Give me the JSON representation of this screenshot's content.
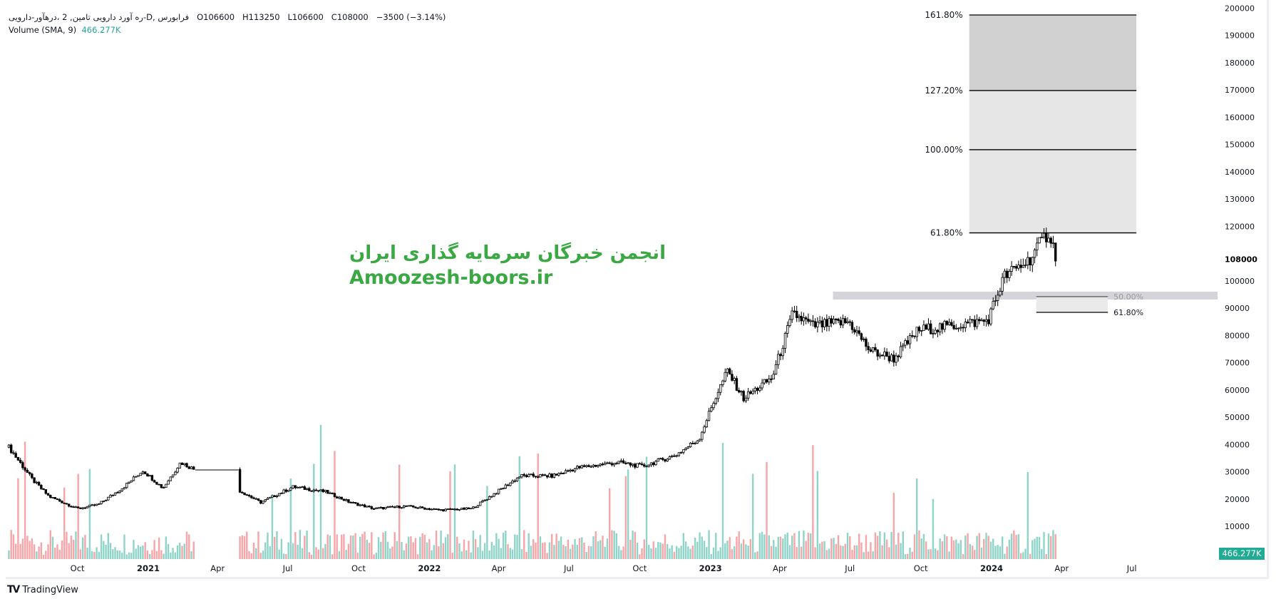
{
  "legend": {
    "symbol": "ره آورد دارویی تامین, 2 ،درهآور-دارویی-D, فرابورس",
    "open": "O106600",
    "high": "H113250",
    "low": "L106600",
    "close": "C108000",
    "change": "−3500 (−3.14%)",
    "volume_label": "Volume (SMA, 9)",
    "volume_value": "466.277K"
  },
  "watermark": {
    "persian": "انجمن خبرگان سرمایه گذاری ایران",
    "site": "Amoozesh-boors.ir",
    "color": "#3aa843"
  },
  "volume_badge": "466.277K",
  "branding": "TradingView",
  "chart_data": {
    "type": "candlestick",
    "price_axis": {
      "ticks": [
        10000,
        20000,
        30000,
        40000,
        50000,
        60000,
        70000,
        80000,
        90000,
        100000,
        120000,
        130000,
        140000,
        150000,
        160000,
        170000,
        180000,
        190000,
        200000
      ],
      "current_price": 108000,
      "current_price_label": "108000",
      "range": [
        0,
        200000
      ]
    },
    "time_axis": [
      {
        "label": "Oct",
        "date": "2020-10-01"
      },
      {
        "label": "2021",
        "date": "2021-01-01",
        "bold": true
      },
      {
        "label": "Apr",
        "date": "2021-04-01"
      },
      {
        "label": "Jul",
        "date": "2021-07-01"
      },
      {
        "label": "Oct",
        "date": "2021-10-01"
      },
      {
        "label": "2022",
        "date": "2022-01-01",
        "bold": true
      },
      {
        "label": "Apr",
        "date": "2022-04-01"
      },
      {
        "label": "Jul",
        "date": "2022-07-01"
      },
      {
        "label": "Oct",
        "date": "2022-10-01"
      },
      {
        "label": "2023",
        "date": "2023-01-01",
        "bold": true
      },
      {
        "label": "Apr",
        "date": "2023-04-01"
      },
      {
        "label": "Jul",
        "date": "2023-07-01"
      },
      {
        "label": "Oct",
        "date": "2023-10-01"
      },
      {
        "label": "2024",
        "date": "2024-01-01",
        "bold": true
      },
      {
        "label": "Apr",
        "date": "2024-04-01"
      },
      {
        "label": "Jul",
        "date": "2024-07-01"
      }
    ],
    "price_path": [
      [
        "2020-07-04",
        39000
      ],
      [
        "2020-08-04",
        27000
      ],
      [
        "2020-08-25",
        21000
      ],
      [
        "2020-10-01",
        16500
      ],
      [
        "2020-10-28",
        18000
      ],
      [
        "2020-11-28",
        24000
      ],
      [
        "2020-12-25",
        30500
      ],
      [
        "2021-01-20",
        24000
      ],
      [
        "2021-02-12",
        33500
      ],
      [
        "2021-03-03",
        30700
      ],
      [
        "2021-05-02",
        22700
      ],
      [
        "2021-05-27",
        18800
      ],
      [
        "2021-07-08",
        24500
      ],
      [
        "2021-08-19",
        22700
      ],
      [
        "2021-09-20",
        18800
      ],
      [
        "2021-10-21",
        16500
      ],
      [
        "2021-12-02",
        17400
      ],
      [
        "2022-01-14",
        16000
      ],
      [
        "2022-02-25",
        16500
      ],
      [
        "2022-03-29",
        22500
      ],
      [
        "2022-04-29",
        28500
      ],
      [
        "2022-06-10",
        28500
      ],
      [
        "2022-07-12",
        31500
      ],
      [
        "2022-09-03",
        33500
      ],
      [
        "2022-10-04",
        32000
      ],
      [
        "2022-11-16",
        36000
      ],
      [
        "2022-12-17",
        42000
      ],
      [
        "2023-01-07",
        57000
      ],
      [
        "2023-01-23",
        67000
      ],
      [
        "2023-02-13",
        57000
      ],
      [
        "2023-03-22",
        64500
      ],
      [
        "2023-04-18",
        88000
      ],
      [
        "2023-05-14",
        83500
      ],
      [
        "2023-06-30",
        85000
      ],
      [
        "2023-07-27",
        74500
      ],
      [
        "2023-08-27",
        71500
      ],
      [
        "2023-09-28",
        82000
      ],
      [
        "2023-11-09",
        83500
      ],
      [
        "2023-12-27",
        85500
      ],
      [
        "2024-01-17",
        101500
      ],
      [
        "2024-02-18",
        107500
      ],
      [
        "2024-03-15",
        118000
      ],
      [
        "2024-03-26",
        108000
      ]
    ],
    "trading_halt": {
      "from": "2021-03-03",
      "to": "2021-04-28",
      "price": 30700
    },
    "fib_extension": {
      "from": "2023-12-03",
      "to": "2024-07-07",
      "levels": [
        {
          "label": "161.80%",
          "price": 197500
        },
        {
          "label": "127.20%",
          "price": 169800
        },
        {
          "label": "100.00%",
          "price": 148100
        },
        {
          "label": "61.80%",
          "price": 117600
        }
      ],
      "fill_upper": "#d1d1d1",
      "fill_lower": "#e6e6e6"
    },
    "fib_retracement": {
      "band": {
        "from": "2023-06-09",
        "top": 96050,
        "bottom": 93170,
        "color": "#d4d5da"
      },
      "from": "2024-02-28",
      "to": "2024-05-31",
      "levels": [
        {
          "label": "50.00%",
          "price": 94220,
          "color": "#999999"
        },
        {
          "label": "61.80%",
          "price": 88470,
          "color": "#131722"
        }
      ]
    },
    "colors": {
      "up_volume": "#8fd4c8",
      "down_volume": "#f6a5a9",
      "candle": "#000000",
      "badge": "#22ab94"
    }
  }
}
